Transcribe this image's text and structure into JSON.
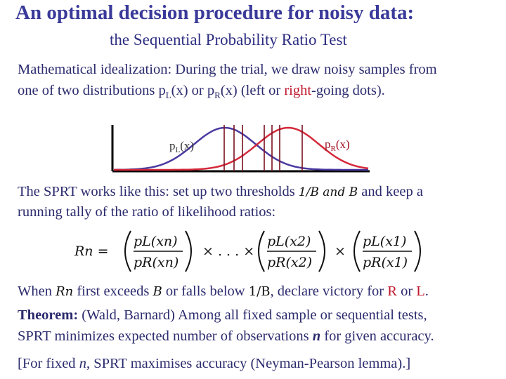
{
  "slide": {
    "title": "An optimal decision procedure for noisy data:",
    "subtitle": "the Sequential Probability Ratio Test",
    "intro": {
      "line1": "Mathematical idealization: During the trial, we draw noisy samples from",
      "line2_a": "one of two distributions ",
      "pL": "p",
      "pL_sub": "L",
      "pL_arg": "(x)",
      "or": " or ",
      "pR": "p",
      "pR_sub": "R",
      "pR_arg": "(x)",
      "paren_open": " (left or ",
      "right_word": "right",
      "paren_close": "-going dots)."
    },
    "figure": {
      "left_label": "p",
      "left_label_sub": "L",
      "left_label_arg": "(x)",
      "right_label": "p",
      "right_label_sub": "R",
      "right_label_arg": "(x)",
      "colors": {
        "left": "#4a3aa0",
        "right": "#d42a3a",
        "samples": "#7a1020",
        "axis": "#000000"
      }
    },
    "sprt": {
      "line1_a": "The SPRT works like this: set up two thresholds ",
      "threshold_text": "1/B and B",
      "line1_b": " and keep a",
      "line2": "running tally of the ratio of likelihood ratios:"
    },
    "formula": {
      "lhs": "Rn =",
      "n_term_num": "pL(xn)",
      "n_term_den": "pR(xn)",
      "dots": "× . . . ×",
      "two_term_num": "pL(x2)",
      "two_term_den": "pR(x2)",
      "times": "×",
      "one_term_num": "pL(x1)",
      "one_term_den": "pR(x1)"
    },
    "when": {
      "a": "When ",
      "rn": "Rn",
      "b": " first exceeds ",
      "B": "B",
      "c": " or falls below ",
      "invB": "1/B",
      "d": ", declare victory for ",
      "R": "R",
      "e": " or ",
      "L": "L",
      "f": "."
    },
    "theorem": {
      "label": "Theorem:",
      "line1": " (Wald, Barnard) Among all fixed sample or sequential tests,",
      "line2_a": "SPRT minimizes expected number of observations ",
      "n": "n",
      "line2_b": " for given accuracy."
    },
    "footnote": {
      "a": "[For fixed ",
      "n": "n",
      "b": ", SPRT maximises accuracy (Neyman-Pearson lemma).]"
    }
  }
}
